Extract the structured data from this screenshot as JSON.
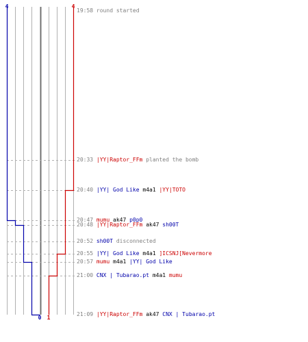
{
  "colors": {
    "t": "#cc0000",
    "ct": "#0000aa",
    "grid": "#b0b0b0",
    "center": "#707070",
    "neutral": "#808080",
    "weapon": "#000000"
  },
  "counts": {
    "ct_start": "4",
    "t_start": "4",
    "ct_end": "0",
    "t_end": "1"
  },
  "chart_data": {
    "type": "line",
    "title": "",
    "xlabel": "",
    "ylabel": "",
    "y_axis": "time",
    "x_range": [
      0,
      4
    ],
    "grid": true,
    "series": [
      {
        "team": "ct",
        "color": "#0000aa",
        "steps": [
          4,
          4,
          4,
          3,
          2,
          1,
          0
        ]
      },
      {
        "team": "t",
        "color": "#cc0000",
        "steps": [
          4,
          4,
          3,
          3,
          2,
          1,
          1
        ]
      }
    ]
  },
  "events": [
    {
      "time": "19:58",
      "parts": [
        {
          "text": "round started",
          "style": "neutral"
        }
      ]
    },
    {
      "time": "20:33",
      "parts": [
        {
          "text": "|YY|Raptor_FFm",
          "style": "t"
        },
        {
          "text": "planted the bomb",
          "style": "neutral"
        }
      ]
    },
    {
      "time": "20:40",
      "parts": [
        {
          "text": "|YY| God Like",
          "style": "ct"
        },
        {
          "text": "m4a1",
          "style": "weapon"
        },
        {
          "text": "|YY|TOTO",
          "style": "t"
        }
      ]
    },
    {
      "time": "20:47",
      "parts": [
        {
          "text": "mumu",
          "style": "t"
        },
        {
          "text": "ak47",
          "style": "weapon"
        },
        {
          "text": "p0p0",
          "style": "ct"
        }
      ]
    },
    {
      "time": "20:48",
      "parts": [
        {
          "text": "|YY|Raptor_FFm",
          "style": "t"
        },
        {
          "text": "ak47",
          "style": "weapon"
        },
        {
          "text": "sh00T",
          "style": "ct"
        }
      ]
    },
    {
      "time": "20:52",
      "parts": [
        {
          "text": "sh00T",
          "style": "ct"
        },
        {
          "text": "disconnected",
          "style": "neutral"
        }
      ]
    },
    {
      "time": "20:55",
      "parts": [
        {
          "text": "|YY| God Like",
          "style": "ct"
        },
        {
          "text": "m4a1",
          "style": "weapon"
        },
        {
          "text": "]ICSNJ[Nevermore",
          "style": "t"
        }
      ]
    },
    {
      "time": "20:57",
      "parts": [
        {
          "text": "mumu",
          "style": "t"
        },
        {
          "text": "m4a1",
          "style": "weapon"
        },
        {
          "text": "|YY| God Like",
          "style": "ct"
        }
      ]
    },
    {
      "time": "21:00",
      "parts": [
        {
          "text": "CNX | Tubarao.pt",
          "style": "ct"
        },
        {
          "text": "m4a1",
          "style": "weapon"
        },
        {
          "text": "mumu",
          "style": "t"
        }
      ]
    },
    {
      "time": "21:09",
      "parts": [
        {
          "text": "|YY|Raptor_FFm",
          "style": "t"
        },
        {
          "text": "ak47",
          "style": "weapon"
        },
        {
          "text": "CNX | Tubarao.pt",
          "style": "ct"
        }
      ]
    }
  ]
}
